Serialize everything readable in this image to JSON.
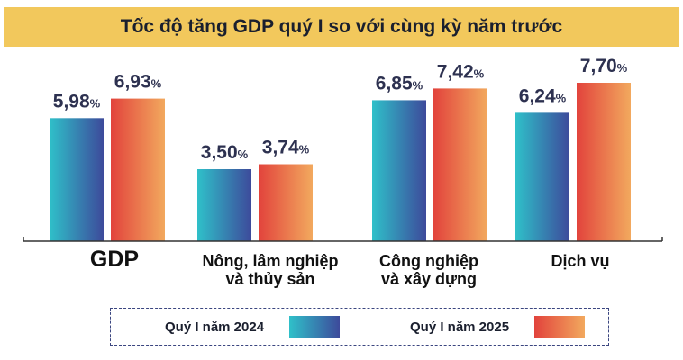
{
  "chart_data": {
    "type": "bar",
    "title": "Tốc độ tăng GDP quý I so với cùng kỳ năm trước",
    "categories": [
      "GDP",
      "Nông, lâm nghiệp và thủy sản",
      "Công nghiệp và xây dựng",
      "Dịch vụ"
    ],
    "category_lines": [
      [
        "GDP"
      ],
      [
        "Nông, lâm nghiệp",
        "và thủy sản"
      ],
      [
        "Công nghiệp",
        "và xây dựng"
      ],
      [
        "Dịch vụ"
      ]
    ],
    "series": [
      {
        "name": "Quý I năm 2024",
        "values": [
          5.98,
          3.5,
          6.85,
          6.24
        ],
        "labels": [
          "5,98",
          "3,50",
          "6,85",
          "6,24"
        ]
      },
      {
        "name": "Quý I năm 2025",
        "values": [
          6.93,
          3.74,
          7.42,
          7.7
        ],
        "labels": [
          "6,93",
          "3,74",
          "7,42",
          "7,70"
        ]
      }
    ],
    "unit": "%",
    "ylim": [
      0,
      7.7
    ],
    "grid": false,
    "legend_position": "bottom"
  },
  "colors": {
    "series_2024_start": "#2fc0c9",
    "series_2024_end": "#3d4a9b",
    "series_2025_start": "#e2433c",
    "series_2025_end": "#f2a95e",
    "title_bg": "#f2c85c",
    "label_color": "#2d3150"
  }
}
